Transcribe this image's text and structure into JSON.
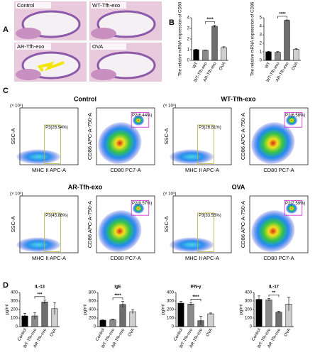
{
  "panel_labels": [
    "A",
    "B",
    "C",
    "D"
  ],
  "histology": [
    "Control",
    "WT-Tfh-exo",
    "AR-Tfh-exo",
    "OVA"
  ],
  "flow": {
    "scale": "(× 10⁵)",
    "ssc": "SSC-A",
    "mhc": "MHC II APC-A",
    "cd86": "CD86 APC-A-750-A",
    "cd80": "CD80 PC7-A",
    "groups": [
      {
        "title": "Control",
        "gate1": "P3(26.94%)",
        "gate2": "P2(6.44%)"
      },
      {
        "title": "WT-Tfh-exo",
        "gate1": "P3(26.81%)",
        "gate2": "P2(6.58%)"
      },
      {
        "title": "AR-Tfh-exo",
        "gate1": "P3(45.88%)",
        "gate2": "P2(9.57%)"
      },
      {
        "title": "OVA",
        "gate1": "P3(33.55%)",
        "gate2": "P2(7.59%)"
      }
    ]
  },
  "chart_data": [
    {
      "type": "bar",
      "ylabel": "The relative mRNA expression of CD80",
      "categories": [
        "WT",
        "WT-Tfh-exo",
        "AR-Tfh-exo",
        "OVA"
      ],
      "values": [
        1.0,
        0.95,
        3.2,
        1.2
      ],
      "errors": [
        0.05,
        0.03,
        0.1,
        0.08
      ],
      "colors": [
        "#000000",
        "#8a8a8a",
        "#6e6e6e",
        "#d0d0d0"
      ],
      "ylim": [
        0,
        4
      ],
      "yticks": [
        0,
        1,
        2,
        3,
        4
      ],
      "significance": {
        "label": "****",
        "between": [
          1,
          2
        ]
      }
    },
    {
      "type": "bar",
      "ylabel": "The relative mRNA expression of CD86",
      "categories": [
        "WT",
        "WT-Tfh-exo",
        "AR-Tfh-exo",
        "OVA"
      ],
      "values": [
        1.0,
        0.95,
        4.7,
        1.3
      ],
      "errors": [
        0.05,
        0.08,
        0.05,
        0.08
      ],
      "colors": [
        "#000000",
        "#8a8a8a",
        "#6e6e6e",
        "#d0d0d0"
      ],
      "ylim": [
        0,
        5
      ],
      "yticks": [
        0,
        1,
        2,
        3,
        4,
        5
      ],
      "significance": {
        "label": "****",
        "between": [
          1,
          2
        ]
      }
    },
    {
      "type": "bar",
      "title": "IL-13",
      "ylabel": "pg/ml",
      "categories": [
        "Control",
        "WT-Tfh-exo",
        "AR-Tfh-exo",
        "OVA"
      ],
      "values": [
        125,
        125,
        290,
        210
      ],
      "errors": [
        30,
        40,
        20,
        70
      ],
      "colors": [
        "#000000",
        "#8a8a8a",
        "#6e6e6e",
        "#d0d0d0"
      ],
      "ylim": [
        0,
        400
      ],
      "yticks": [
        0,
        100,
        200,
        300,
        400
      ],
      "significance": {
        "label": "***",
        "between": [
          1,
          2
        ]
      }
    },
    {
      "type": "bar",
      "title": "IgE",
      "ylabel": "pg/ml",
      "categories": [
        "Control",
        "WT-Tfh-exo",
        "AR-Tfh-exo",
        "OVA"
      ],
      "values": [
        150,
        160,
        520,
        350
      ],
      "errors": [
        10,
        15,
        70,
        50
      ],
      "colors": [
        "#000000",
        "#8a8a8a",
        "#6e6e6e",
        "#d0d0d0"
      ],
      "ylim": [
        0,
        800
      ],
      "yticks": [
        0,
        200,
        400,
        600,
        800
      ],
      "significance": {
        "label": "****",
        "between": [
          1,
          2
        ]
      }
    },
    {
      "type": "bar",
      "title": "IFN-γ",
      "ylabel": "pg/ml",
      "categories": [
        "Control",
        "WT-Tfh-exo",
        "AR-Tfh-exo",
        "OVA"
      ],
      "values": [
        275,
        265,
        70,
        150
      ],
      "errors": [
        20,
        15,
        50,
        10
      ],
      "colors": [
        "#000000",
        "#8a8a8a",
        "#6e6e6e",
        "#d0d0d0"
      ],
      "ylim": [
        0,
        400
      ],
      "yticks": [
        0,
        100,
        200,
        300,
        400
      ],
      "significance": {
        "label": "****",
        "between": [
          1,
          2
        ]
      }
    },
    {
      "type": "bar",
      "title": "IL-17",
      "ylabel": "pg/ml",
      "categories": [
        "Control",
        "WT-Tfh-exo",
        "AR-Tfh-exo",
        "OVA"
      ],
      "values": [
        320,
        315,
        170,
        265
      ],
      "errors": [
        40,
        15,
        10,
        80
      ],
      "colors": [
        "#000000",
        "#8a8a8a",
        "#6e6e6e",
        "#d0d0d0"
      ],
      "ylim": [
        0,
        400
      ],
      "yticks": [
        0,
        100,
        200,
        300,
        400
      ],
      "significance": {
        "label": "**",
        "between": [
          1,
          2
        ]
      }
    }
  ]
}
